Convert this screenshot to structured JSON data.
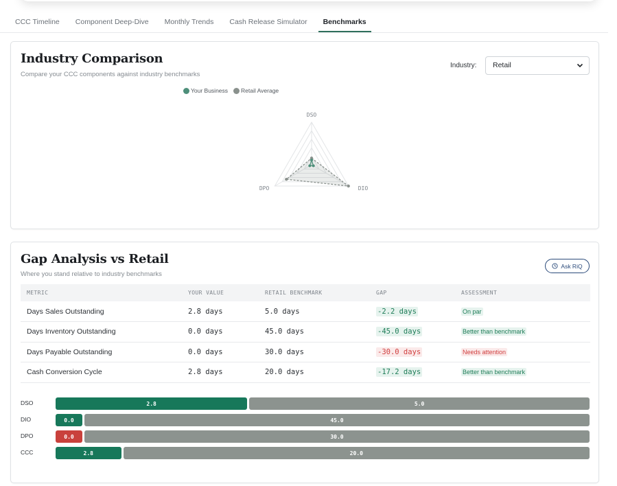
{
  "tabs": [
    {
      "label": "CCC Timeline",
      "active": false
    },
    {
      "label": "Component Deep-Dive",
      "active": false
    },
    {
      "label": "Monthly Trends",
      "active": false
    },
    {
      "label": "Cash Release Simulator",
      "active": false
    },
    {
      "label": "Benchmarks",
      "active": true
    }
  ],
  "industry_comparison": {
    "title": "Industry Comparison",
    "subtitle": "Compare your CCC components against industry benchmarks",
    "industry_label": "Industry:",
    "industry_selected": "Retail",
    "legend": [
      {
        "label": "Your Business",
        "color": "#4e8f7a"
      },
      {
        "label": "Retail Average",
        "color": "#8a918d"
      }
    ],
    "radar": {
      "axes": [
        "DSO",
        "DIO",
        "DPO"
      ],
      "your_business": {
        "DSO": 2.8,
        "DIO": 0.0,
        "DPO": 0.0
      },
      "retail_average": {
        "DSO": 5.0,
        "DIO": 45.0,
        "DPO": 30.0
      }
    }
  },
  "gap_analysis": {
    "title": "Gap Analysis vs Retail",
    "subtitle": "Where you stand relative to industry benchmarks",
    "ask_button": "Ask RiQ",
    "columns": [
      "METRIC",
      "YOUR VALUE",
      "RETAIL BENCHMARK",
      "GAP",
      "ASSESSMENT"
    ],
    "rows": [
      {
        "metric": "Days Sales Outstanding",
        "your_value": "2.8 days",
        "benchmark": "5.0 days",
        "gap": "-2.2 days",
        "gap_status": "good",
        "assessment": "On par",
        "assessment_status": "good"
      },
      {
        "metric": "Days Inventory Outstanding",
        "your_value": "0.0 days",
        "benchmark": "45.0 days",
        "gap": "-45.0 days",
        "gap_status": "good",
        "assessment": "Better than benchmark",
        "assessment_status": "good"
      },
      {
        "metric": "Days Payable Outstanding",
        "your_value": "0.0 days",
        "benchmark": "30.0 days",
        "gap": "-30.0 days",
        "gap_status": "bad",
        "assessment": "Needs attention",
        "assessment_status": "bad"
      },
      {
        "metric": "Cash Conversion Cycle",
        "your_value": "2.8 days",
        "benchmark": "20.0 days",
        "gap": "-17.2 days",
        "gap_status": "good",
        "assessment": "Better than benchmark",
        "assessment_status": "good"
      }
    ],
    "comparison_bars": [
      {
        "label": "DSO",
        "yours": 2.8,
        "yours_text": "2.8",
        "bench": 5.0,
        "bench_text": "5.0",
        "status": "good"
      },
      {
        "label": "DIO",
        "yours": 0.0,
        "yours_text": "0.0",
        "bench": 45.0,
        "bench_text": "45.0",
        "status": "good"
      },
      {
        "label": "DPO",
        "yours": 0.0,
        "yours_text": "0.0",
        "bench": 30.0,
        "bench_text": "30.0",
        "status": "bad"
      },
      {
        "label": "CCC",
        "yours": 2.8,
        "yours_text": "2.8",
        "bench": 20.0,
        "bench_text": "20.0",
        "status": "good"
      }
    ],
    "colors": {
      "good": "#17785a",
      "bad": "#c9413c",
      "bench": "#8c938f"
    }
  }
}
